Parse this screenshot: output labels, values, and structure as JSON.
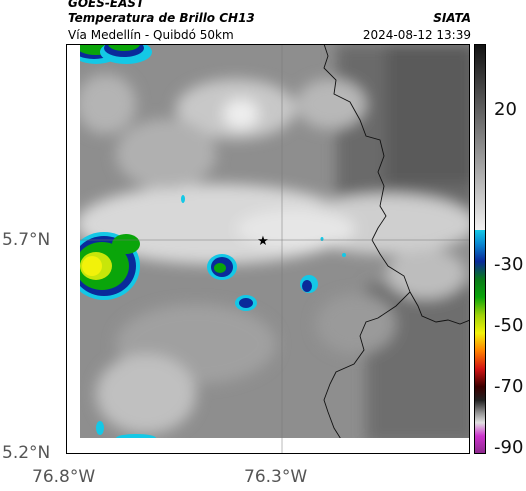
{
  "header": {
    "satellite": "GOES-EAST",
    "product": "Temperatura de Brillo CH13",
    "organization": "SIATA",
    "region": "Vía Medellín - Quibdó 50km",
    "timestamp": "2024-08-12 13:39"
  },
  "map": {
    "lat_ticks": [
      "5.7°N",
      "5.2°N"
    ],
    "lon_ticks": [
      "76.8°W",
      "76.3°W"
    ],
    "marker": "★",
    "gridlines": true
  },
  "colorbar": {
    "tick_labels": [
      "20",
      "-30",
      "-50",
      "-70",
      "-90"
    ],
    "colors": {
      "top": "#1a1a1a",
      "gray_end": "#e8e8e8",
      "cyan": "#14c8e6",
      "blue": "#0a2a9a",
      "green": "#0aa50a",
      "yellow": "#f2f20a",
      "orange": "#ff8000",
      "red": "#d21414",
      "dark": "#2a0000",
      "magenta": "#cc33cc"
    }
  }
}
